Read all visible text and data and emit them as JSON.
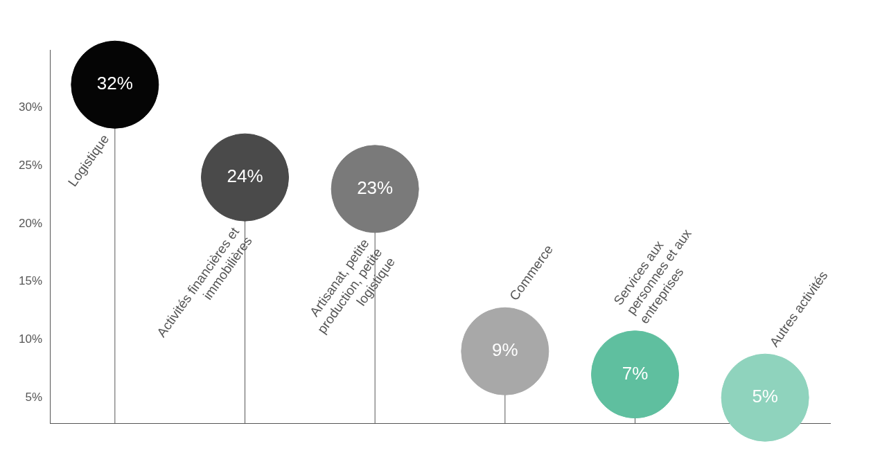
{
  "chart_data": {
    "type": "lollipop",
    "categories": [
      "Logistique",
      "Activités financières et immobilières",
      "Artisanat, petite production, petite logistique",
      "Commerce",
      "Services aux personnes et aux entreprises",
      "Autres activités"
    ],
    "values": [
      32,
      24,
      23,
      9,
      7,
      5
    ],
    "colors": [
      "#050505",
      "#4a4a4a",
      "#7a7a7a",
      "#a8a8a8",
      "#5fbf9f",
      "#8fd3bd"
    ],
    "value_labels": [
      "32%",
      "24%",
      "23%",
      "9%",
      "7%",
      "5%"
    ],
    "ylim": [
      2.8,
      35
    ],
    "yticks": [
      {
        "value": 5,
        "label": "5%"
      },
      {
        "value": 10,
        "label": "10%"
      },
      {
        "value": 15,
        "label": "15%"
      },
      {
        "value": 20,
        "label": "20%"
      },
      {
        "value": 25,
        "label": "25%"
      },
      {
        "value": 30,
        "label": "30%"
      }
    ]
  }
}
